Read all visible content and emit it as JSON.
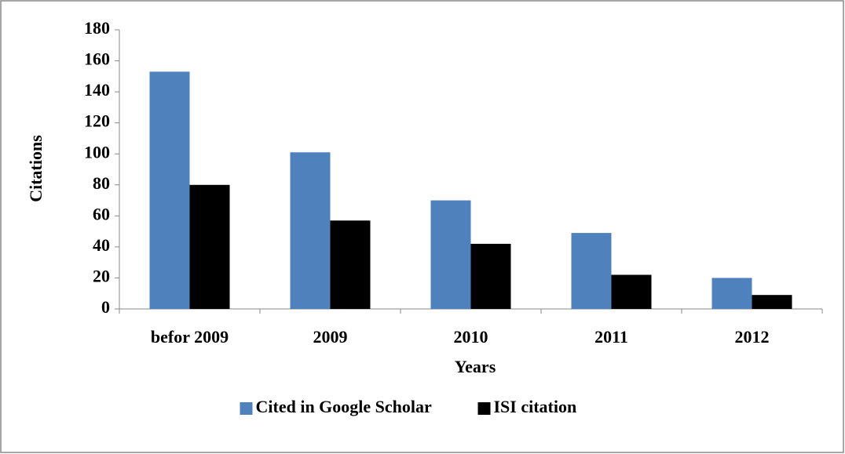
{
  "chart_data": {
    "type": "bar",
    "categories": [
      "befor 2009",
      "2009",
      "2010",
      "2011",
      "2012"
    ],
    "series": [
      {
        "name": "Cited in Google Scholar",
        "color": "#4f81bd",
        "values": [
          153,
          101,
          70,
          49,
          20
        ]
      },
      {
        "name": "ISI citation",
        "color": "#000000",
        "values": [
          80,
          57,
          42,
          22,
          9
        ]
      }
    ],
    "xlabel": "Years",
    "ylabel": "Citations",
    "ylim": [
      0,
      180
    ],
    "yticks": [
      0,
      20,
      40,
      60,
      80,
      100,
      120,
      140,
      160,
      180
    ],
    "legend": "bottom"
  }
}
